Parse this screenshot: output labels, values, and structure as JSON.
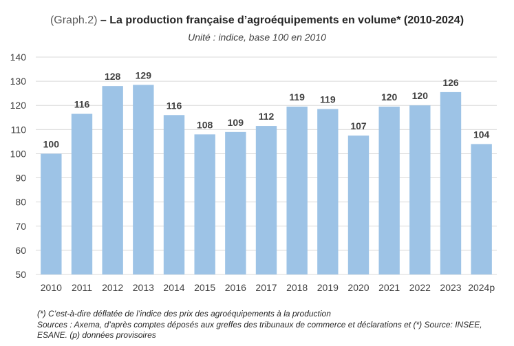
{
  "chart_data": {
    "type": "bar",
    "title_prefix": "(Graph.2)",
    "title": "– La production française d’agroéquipements en volume* (2010-2024)",
    "subtitle": "Unité : indice, base 100 en 2010",
    "categories": [
      "2010",
      "2011",
      "2012",
      "2013",
      "2014",
      "2015",
      "2016",
      "2017",
      "2018",
      "2019",
      "2020",
      "2021",
      "2022",
      "2023",
      "2024p"
    ],
    "values": [
      100,
      116.5,
      128,
      128.5,
      116,
      108,
      109,
      111.5,
      119.5,
      118.5,
      107.5,
      119.5,
      120,
      125.5,
      104
    ],
    "data_labels": [
      "100",
      "116",
      "128",
      "129",
      "116",
      "108",
      "109",
      "112",
      "119",
      "119",
      "107",
      "120",
      "120",
      "126",
      "104"
    ],
    "ylim": [
      50,
      140
    ],
    "yticks": [
      "50",
      "60",
      "70",
      "80",
      "90",
      "100",
      "110",
      "120",
      "130",
      "140"
    ],
    "ytick_values": [
      50,
      60,
      70,
      80,
      90,
      100,
      110,
      120,
      130,
      140
    ],
    "grid": true,
    "bar_color": "#9dc3e6",
    "grid_color": "#d9d9d9",
    "xlabel": "",
    "ylabel": ""
  },
  "footnotes": {
    "line1": "(*) C’est-à-dire déflatée de l’indice des prix des agroéquipements à la production",
    "line2": "Sources : Axema, d’après comptes déposés aux greffes des tribunaux de commerce et déclarations  et (*) Source: INSEE, ESANE. (p) données provisoires"
  }
}
